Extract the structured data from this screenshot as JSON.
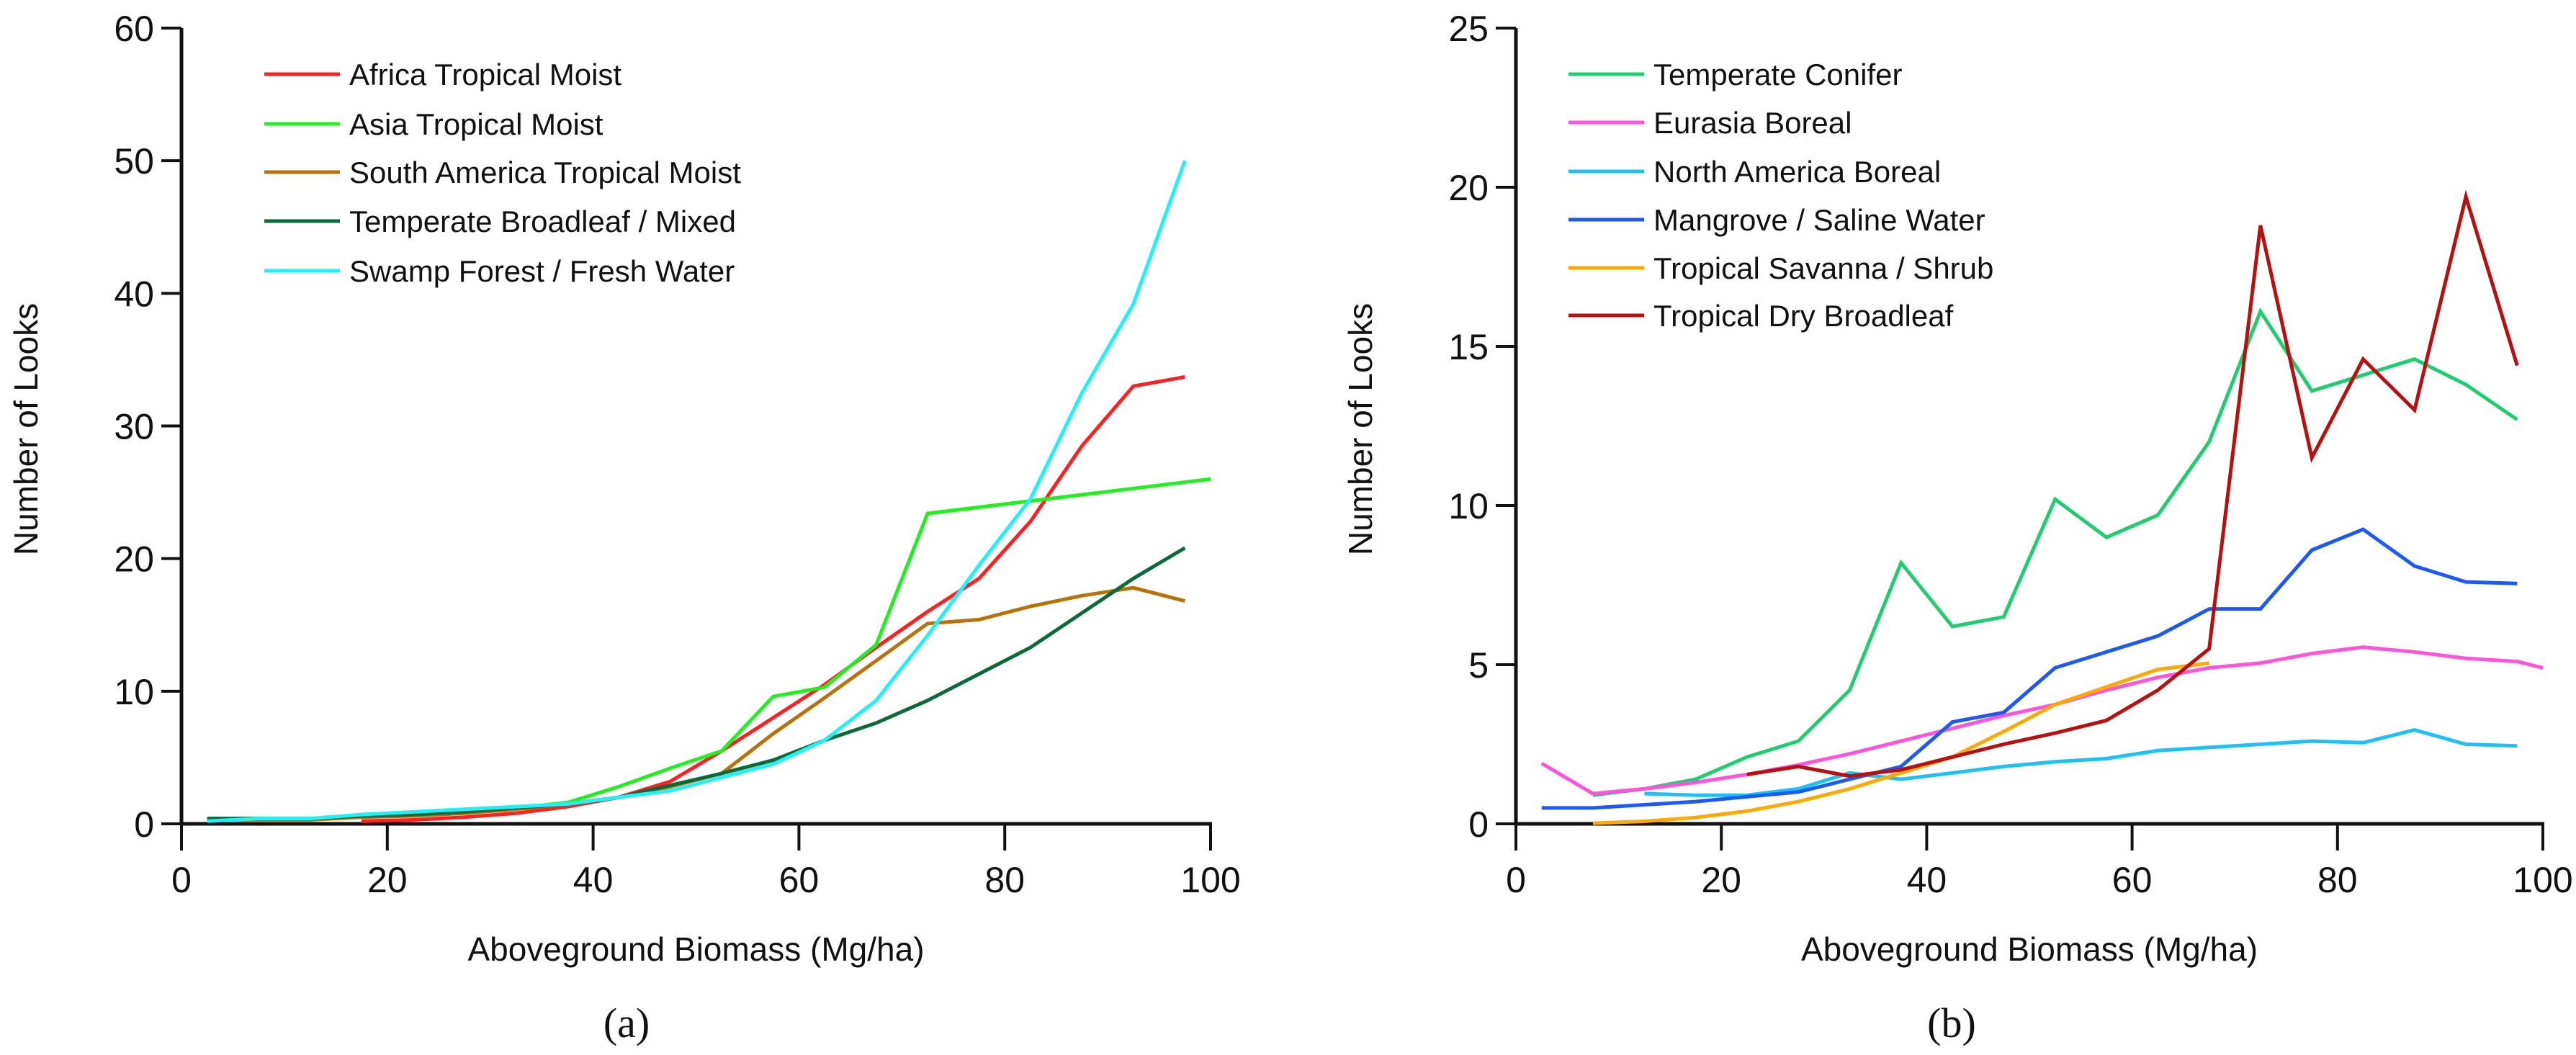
{
  "chart_data": [
    {
      "type": "line",
      "panel_label": "(a)",
      "xlabel": "Aboveground Biomass (Mg/ha)",
      "ylabel": "Number of Looks",
      "xlim": [
        0,
        100
      ],
      "ylim": [
        0,
        60
      ],
      "xticks": [
        0,
        20,
        40,
        60,
        80,
        100
      ],
      "yticks": [
        0,
        10,
        20,
        30,
        40,
        50,
        60
      ],
      "grid": false,
      "legend_position": "top-left",
      "series": [
        {
          "name": "Africa Tropical Moist",
          "color": "#ff2020",
          "x": [
            17.5,
            22.5,
            27.5,
            32.5,
            37.5,
            42.5,
            47.5,
            52.5,
            57.5,
            62.5,
            67.5,
            72.5,
            77.5,
            82.5,
            87.5,
            92.5,
            97.5
          ],
          "y": [
            0.2,
            0.3,
            0.5,
            0.8,
            1.3,
            2.0,
            3.2,
            5.5,
            8.0,
            10.5,
            13.3,
            16.0,
            18.5,
            22.8,
            28.5,
            33.0,
            33.7
          ]
        },
        {
          "name": "Asia Tropical Moist",
          "color": "#22ee22",
          "x": [
            2.5,
            7.5,
            12.5,
            17.5,
            22.5,
            27.5,
            32.5,
            37.5,
            42.5,
            47.5,
            52.5,
            57.5,
            62.5,
            67.5,
            72.5,
            100
          ],
          "y": [
            0.4,
            0.4,
            0.4,
            0.6,
            0.8,
            1.0,
            1.2,
            1.6,
            2.8,
            4.2,
            5.5,
            9.6,
            10.3,
            13.5,
            23.4,
            26.0
          ]
        },
        {
          "name": "South America Tropical Moist",
          "color": "#b8720a",
          "x": [
            2.5,
            7.5,
            12.5,
            17.5,
            22.5,
            27.5,
            32.5,
            37.5,
            42.5,
            47.5,
            52.5,
            57.5,
            62.5,
            67.5,
            72.5,
            77.5,
            82.5,
            87.5,
            92.5,
            97.5
          ],
          "y": [
            0.3,
            0.3,
            0.3,
            0.5,
            0.6,
            0.8,
            1.1,
            1.5,
            2.0,
            2.8,
            3.8,
            6.8,
            9.5,
            12.3,
            15.1,
            15.4,
            16.4,
            17.2,
            17.8,
            16.8
          ]
        },
        {
          "name": "Temperate Broadleaf / Mixed",
          "color": "#0b6a3a",
          "x": [
            2.5,
            7.5,
            12.5,
            17.5,
            22.5,
            27.5,
            32.5,
            37.5,
            42.5,
            47.5,
            52.5,
            57.5,
            62.5,
            67.5,
            72.5,
            77.5,
            82.5,
            87.5,
            92.5,
            97.5
          ],
          "y": [
            0.4,
            0.4,
            0.4,
            0.6,
            0.7,
            0.9,
            1.2,
            1.5,
            2.0,
            2.9,
            3.8,
            4.8,
            6.3,
            7.6,
            9.3,
            11.3,
            13.3,
            15.9,
            18.5,
            20.8
          ]
        },
        {
          "name": "Swamp Forest / Fresh Water",
          "color": "#22f0f8",
          "x": [
            2.5,
            7.5,
            12.5,
            17.5,
            22.5,
            27.5,
            32.5,
            37.5,
            42.5,
            47.5,
            52.5,
            57.5,
            62.5,
            67.5,
            72.5,
            77.5,
            82.5,
            87.5,
            92.5,
            97.5
          ],
          "y": [
            0.2,
            0.4,
            0.4,
            0.7,
            0.9,
            1.1,
            1.3,
            1.5,
            2.0,
            2.5,
            3.5,
            4.5,
            6.3,
            9.3,
            14.2,
            19.5,
            24.5,
            32.5,
            39.2,
            50.0
          ]
        }
      ]
    },
    {
      "type": "line",
      "panel_label": "(b)",
      "xlabel": "Aboveground Biomass (Mg/ha)",
      "ylabel": "Number of Looks",
      "xlim": [
        0,
        100
      ],
      "ylim": [
        0,
        25
      ],
      "xticks": [
        0,
        20,
        40,
        60,
        80,
        100
      ],
      "yticks": [
        0,
        5,
        10,
        15,
        20,
        25
      ],
      "grid": false,
      "legend_position": "top-left",
      "series": [
        {
          "name": "Temperate Conifer",
          "color": "#1fcc70",
          "x": [
            7.5,
            12.5,
            17.5,
            22.5,
            27.5,
            32.5,
            37.5,
            42.5,
            47.5,
            52.5,
            57.5,
            62.5,
            67.5,
            72.5,
            77.5,
            82.5,
            87.5,
            92.5,
            97.5
          ],
          "y": [
            0.9,
            1.1,
            1.4,
            2.1,
            2.6,
            4.2,
            8.2,
            6.2,
            6.5,
            10.2,
            9.0,
            9.7,
            12.0,
            16.1,
            13.6,
            14.1,
            14.6,
            13.8,
            12.7
          ]
        },
        {
          "name": "Eurasia Boreal",
          "color": "#ff55dd",
          "x": [
            2.5,
            7.5,
            12.5,
            17.5,
            22.5,
            27.5,
            32.5,
            37.5,
            42.5,
            47.5,
            52.5,
            57.5,
            62.5,
            67.5,
            72.5,
            77.5,
            82.5,
            87.5,
            92.5,
            97.5,
            100
          ],
          "y": [
            1.9,
            0.95,
            1.1,
            1.3,
            1.55,
            1.85,
            2.2,
            2.6,
            3.0,
            3.4,
            3.75,
            4.2,
            4.6,
            4.9,
            5.05,
            5.35,
            5.55,
            5.4,
            5.2,
            5.1,
            4.9
          ]
        },
        {
          "name": "North America Boreal",
          "color": "#1ec0f5",
          "x": [
            12.5,
            17.5,
            22.5,
            27.5,
            32.5,
            37.5,
            42.5,
            47.5,
            52.5,
            57.5,
            62.5,
            67.5,
            72.5,
            77.5,
            82.5,
            87.5,
            92.5,
            97.5
          ],
          "y": [
            0.95,
            0.9,
            0.9,
            1.1,
            1.6,
            1.4,
            1.6,
            1.8,
            1.95,
            2.05,
            2.3,
            2.4,
            2.5,
            2.6,
            2.55,
            2.95,
            2.5,
            2.45
          ]
        },
        {
          "name": "Mangrove / Saline Water",
          "color": "#1d5af5",
          "x": [
            2.5,
            7.5,
            12.5,
            17.5,
            22.5,
            27.5,
            32.5,
            37.5,
            42.5,
            47.5,
            52.5,
            57.5,
            62.5,
            67.5,
            72.5,
            77.5,
            82.5,
            87.5,
            92.5,
            97.5
          ],
          "y": [
            0.5,
            0.5,
            0.6,
            0.7,
            0.85,
            1.0,
            1.4,
            1.8,
            3.2,
            3.5,
            4.9,
            5.4,
            5.9,
            6.75,
            6.75,
            8.6,
            9.25,
            8.1,
            7.6,
            7.55
          ]
        },
        {
          "name": "Tropical Savanna / Shrub",
          "color": "#ffaa00",
          "x": [
            7.5,
            12.5,
            17.5,
            22.5,
            27.5,
            32.5,
            37.5,
            42.5,
            47.5,
            52.5,
            57.5,
            62.5,
            67.5
          ],
          "y": [
            0.02,
            0.08,
            0.2,
            0.4,
            0.7,
            1.1,
            1.6,
            2.1,
            2.9,
            3.75,
            4.3,
            4.85,
            5.05
          ]
        },
        {
          "name": "Tropical Dry Broadleaf",
          "color": "#b81010",
          "x": [
            22.5,
            27.5,
            32.5,
            37.5,
            42.5,
            47.5,
            52.5,
            57.5,
            62.5,
            67.5,
            72.5,
            77.5,
            82.5,
            87.5,
            92.5,
            97.5
          ],
          "y": [
            1.55,
            1.8,
            1.5,
            1.7,
            2.1,
            2.5,
            2.85,
            3.25,
            4.2,
            5.5,
            18.8,
            11.5,
            14.6,
            13.0,
            19.7,
            14.4
          ]
        }
      ]
    }
  ]
}
